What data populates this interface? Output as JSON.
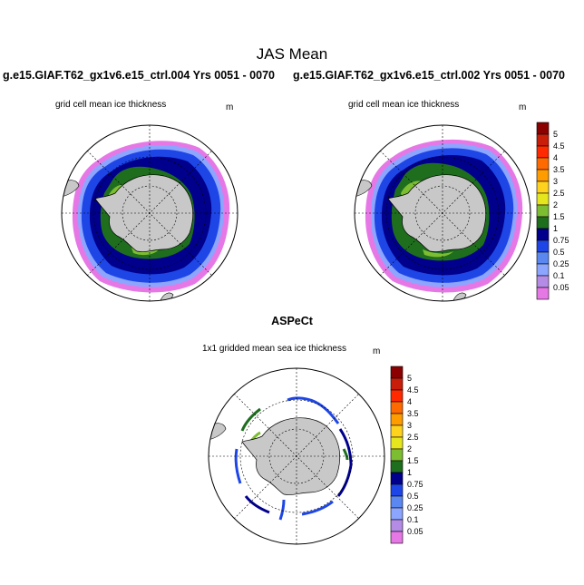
{
  "figure": {
    "main_title": "JAS Mean",
    "case_left_title": "g.e15.GIAF.T62_gx1v6.e15_ctrl.004  Yrs 0051 - 0070",
    "case_right_title": "g.e15.GIAF.T62_gx1v6.e15_ctrl.002  Yrs 0051 - 0070",
    "obs_title": "ASPeCt"
  },
  "panels": [
    {
      "id": "model-004",
      "label": "grid cell mean ice thickness",
      "units": "m"
    },
    {
      "id": "model-002",
      "label": "grid cell mean ice thickness",
      "units": "m"
    },
    {
      "id": "aspect-obs",
      "label": "1x1 gridded mean sea ice thickness",
      "units": "m"
    }
  ],
  "colors": {
    "land": "#c8c8c8",
    "background": "#ffffff",
    "grid": "#000000"
  },
  "chart_data": [
    {
      "type": "heatmap",
      "projection": "south-polar-stereographic",
      "title": "grid cell mean ice thickness",
      "units": "m",
      "case": "g.e15.GIAF.T62_gx1v6.e15_ctrl.004  Yrs 0051 - 0070",
      "season": "JAS Mean",
      "contour_levels": [
        0.05,
        0.1,
        0.25,
        0.5,
        0.75,
        1,
        1.5,
        2,
        2.5,
        3,
        3.5,
        4,
        4.5,
        5
      ],
      "colorbar_labels": [
        "5",
        "4.5",
        "4",
        "3.5",
        "3",
        "2.5",
        "2",
        "1.5",
        "1",
        "0.75",
        "0.5",
        "0.25",
        "0.1",
        "0.05"
      ],
      "colorbar_colors": [
        "#8b0000",
        "#c81e0a",
        "#ff2a00",
        "#ff6a00",
        "#ff9c00",
        "#ffd21e",
        "#e6e61e",
        "#7dbd32",
        "#1e6e1e",
        "#00008c",
        "#1e46e6",
        "#5a87f0",
        "#8ca5ff",
        "#b48ce6",
        "#e678e6"
      ]
    },
    {
      "type": "heatmap",
      "projection": "south-polar-stereographic",
      "title": "grid cell mean ice thickness",
      "units": "m",
      "case": "g.e15.GIAF.T62_gx1v6.e15_ctrl.002  Yrs 0051 - 0070",
      "season": "JAS Mean",
      "contour_levels": [
        0.05,
        0.1,
        0.25,
        0.5,
        0.75,
        1,
        1.5,
        2,
        2.5,
        3,
        3.5,
        4,
        4.5,
        5
      ]
    },
    {
      "type": "heatmap",
      "projection": "south-polar-stereographic",
      "title": "1x1 gridded mean sea ice thickness",
      "units": "m",
      "source": "ASPeCt",
      "contour_levels": [
        0.05,
        0.1,
        0.25,
        0.5,
        0.75,
        1,
        1.5,
        2,
        2.5,
        3,
        3.5,
        4,
        4.5,
        5
      ],
      "colorbar_labels": [
        "5",
        "4.5",
        "4",
        "3.5",
        "3",
        "2.5",
        "2",
        "1.5",
        "1",
        "0.75",
        "0.5",
        "0.25",
        "0.1",
        "0.05"
      ],
      "colorbar_colors": [
        "#8b0000",
        "#c81e0a",
        "#ff2a00",
        "#ff6a00",
        "#ff9c00",
        "#ffd21e",
        "#e6e61e",
        "#7dbd32",
        "#1e6e1e",
        "#00008c",
        "#1e46e6",
        "#5a87f0",
        "#8ca5ff",
        "#b48ce6",
        "#e678e6"
      ]
    }
  ]
}
